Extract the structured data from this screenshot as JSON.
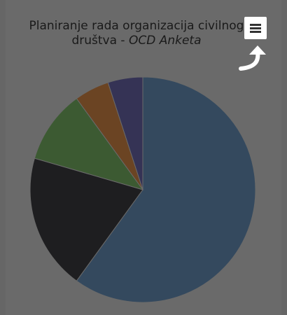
{
  "chart_data": {
    "type": "pie",
    "title": "Planiranje rada organizacija civilnog",
    "title_line2_prefix": "društva - ",
    "title_line2_emphasis": "OCD Anketa",
    "slices": [
      {
        "value": 60.0,
        "color": "#34495e"
      },
      {
        "value": 19.5,
        "color": "#1e1e20"
      },
      {
        "value": 10.5,
        "color": "#3c5a32"
      },
      {
        "value": 5.0,
        "color": "#6b4423"
      },
      {
        "value": 5.0,
        "color": "#353355"
      }
    ],
    "start_angle_deg": 0,
    "direction": "clockwise",
    "legend": "none"
  },
  "toolbar": {
    "menu_icon": "hamburger-menu-icon",
    "hint_icon": "curved-arrow-icon"
  }
}
